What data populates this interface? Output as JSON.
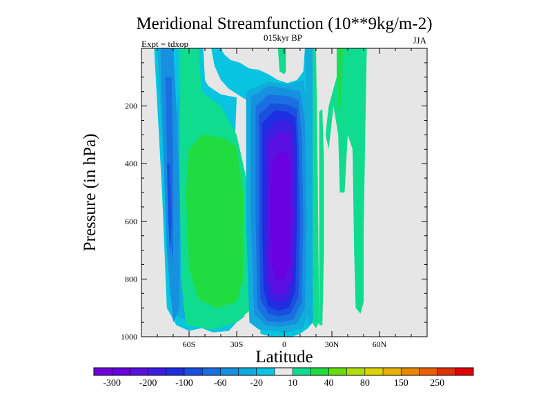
{
  "chart_data": {
    "type": "heatmap",
    "title": "Meridional Streamfunction (10**9kg/m-2)",
    "subtitle_center": "015kyr BP",
    "subtitle_left": "Expt = tdxop",
    "subtitle_right": "JJA",
    "xlabel": "Latitude",
    "ylabel": "Pressure (in hPa)",
    "xlim": [
      -90,
      90
    ],
    "ylim": [
      1000,
      0
    ],
    "x_ticks": [
      {
        "value": -60,
        "label": "60S"
      },
      {
        "value": -30,
        "label": "30S"
      },
      {
        "value": 0,
        "label": "0"
      },
      {
        "value": 30,
        "label": "30N"
      },
      {
        "value": 60,
        "label": "60N"
      }
    ],
    "y_ticks": [
      {
        "value": 200,
        "label": "200"
      },
      {
        "value": 400,
        "label": "400"
      },
      {
        "value": 600,
        "label": "600"
      },
      {
        "value": 800,
        "label": "800"
      },
      {
        "value": 1000,
        "label": "1000"
      }
    ],
    "background_color": "#e6e6e6",
    "colorbar": {
      "colors": [
        "#7000dc",
        "#6800e0",
        "#5a10e0",
        "#3c1ee0",
        "#1e2ee0",
        "#1a50e0",
        "#1a70e0",
        "#1890e0",
        "#10acdc",
        "#08c4e0",
        "#e8e8e8",
        "#10dc90",
        "#20dc40",
        "#68dc10",
        "#b0dc10",
        "#dcd400",
        "#e8b000",
        "#e88800",
        "#e86000",
        "#e03000",
        "#e00000"
      ],
      "labels": [
        "-300",
        "-200",
        "-100",
        "-60",
        "-20",
        "10",
        "40",
        "80",
        "150",
        "250"
      ]
    },
    "contour_regions": [
      {
        "name": "sh-outer-cyan",
        "color": "#08c4e0",
        "polygon": [
          [
            -88,
            0
          ],
          [
            -82,
            0
          ],
          [
            -80,
            200
          ],
          [
            -77,
            500
          ],
          [
            -74,
            900
          ],
          [
            -68,
            960
          ],
          [
            -60,
            980
          ],
          [
            -52,
            970
          ],
          [
            -45,
            985
          ],
          [
            -35,
            980
          ],
          [
            -30,
            950
          ],
          [
            -25,
            930
          ],
          [
            -30,
            900
          ],
          [
            -35,
            870
          ],
          [
            -30,
            170
          ],
          [
            -40,
            160
          ],
          [
            -48,
            130
          ],
          [
            -50,
            110
          ],
          [
            -51,
            0
          ],
          [
            -46,
            0
          ],
          [
            -44,
            60
          ],
          [
            -40,
            110
          ],
          [
            -35,
            140
          ],
          [
            -28,
            165
          ],
          [
            -22,
            185
          ],
          [
            -20,
            200
          ],
          [
            -15,
            990
          ],
          [
            -8,
            1000
          ],
          [
            -2,
            1000
          ],
          [
            5,
            1000
          ],
          [
            10,
            990
          ],
          [
            15,
            970
          ],
          [
            18,
            950
          ],
          [
            17,
            0
          ],
          [
            13,
            0
          ],
          [
            12,
            80
          ],
          [
            8,
            110
          ],
          [
            2,
            120
          ],
          [
            -4,
            110
          ],
          [
            -10,
            90
          ],
          [
            -16,
            75
          ],
          [
            -22,
            70
          ],
          [
            -28,
            50
          ],
          [
            -34,
            40
          ],
          [
            -38,
            20
          ],
          [
            -40,
            0
          ],
          [
            -88,
            0
          ],
          [
            -88,
            1000
          ]
        ]
      },
      {
        "name": "sh-cyan-ring",
        "color": "#10acdc",
        "polygon": [
          [
            -80,
            0
          ],
          [
            -77,
            0
          ],
          [
            -76,
            250
          ],
          [
            -74,
            500
          ],
          [
            -71,
            700
          ],
          [
            -69,
            850
          ],
          [
            -68,
            930
          ],
          [
            -62,
            940
          ],
          [
            -56,
            950
          ],
          [
            -50,
            960
          ],
          [
            -42,
            950
          ],
          [
            -38,
            900
          ],
          [
            -36,
            500
          ],
          [
            -38,
            320
          ],
          [
            -43,
            300
          ],
          [
            -53,
            160
          ],
          [
            -58,
            0
          ],
          [
            -64,
            0
          ],
          [
            -68,
            250
          ],
          [
            -72,
            900
          ],
          [
            -75,
            500
          ],
          [
            -78,
            200
          ]
        ]
      },
      {
        "name": "sh-blue-1",
        "color": "#1890e0",
        "polygon": [
          [
            -78,
            0
          ],
          [
            -70,
            0
          ],
          [
            -68,
            200
          ],
          [
            -66,
            500
          ],
          [
            -66,
            900
          ],
          [
            -70,
            950
          ],
          [
            -74,
            700
          ],
          [
            -76,
            400
          ]
        ]
      },
      {
        "name": "sh-blue-2",
        "color": "#1a70e0",
        "polygon": [
          [
            -75,
            100
          ],
          [
            -71,
            100
          ],
          [
            -70,
            400
          ],
          [
            -70,
            750
          ],
          [
            -73,
            600
          ],
          [
            -74,
            350
          ]
        ]
      },
      {
        "name": "sh-blue-3",
        "color": "#1a50e0",
        "polygon": [
          [
            -74,
            400
          ],
          [
            -72,
            400
          ],
          [
            -71,
            600
          ],
          [
            -72,
            720
          ],
          [
            -73,
            600
          ]
        ]
      },
      {
        "name": "sh-green-ferrel",
        "color": "#10dc90",
        "polygon": [
          [
            -66,
            0
          ],
          [
            -54,
            0
          ],
          [
            -52,
            150
          ],
          [
            -40,
            200
          ],
          [
            -30,
            300
          ],
          [
            -22,
            500
          ],
          [
            -20,
            900
          ],
          [
            -30,
            950
          ],
          [
            -45,
            975
          ],
          [
            -62,
            960
          ],
          [
            -65,
            800
          ],
          [
            -66,
            400
          ]
        ]
      },
      {
        "name": "sh-lime-core",
        "color": "#20dc40",
        "polygon": [
          [
            -60,
            350
          ],
          [
            -52,
            300
          ],
          [
            -38,
            310
          ],
          [
            -30,
            340
          ],
          [
            -26,
            500
          ],
          [
            -26,
            800
          ],
          [
            -30,
            880
          ],
          [
            -42,
            900
          ],
          [
            -54,
            870
          ],
          [
            -60,
            760
          ],
          [
            -62,
            500
          ]
        ]
      },
      {
        "name": "hadley-ring-1",
        "color": "#10acdc",
        "polygon": [
          [
            -24,
            150
          ],
          [
            -10,
            115
          ],
          [
            2,
            125
          ],
          [
            12,
            110
          ],
          [
            15,
            200
          ],
          [
            16,
            600
          ],
          [
            16,
            900
          ],
          [
            12,
            970
          ],
          [
            2,
            985
          ],
          [
            -8,
            980
          ],
          [
            -16,
            975
          ],
          [
            -22,
            950
          ],
          [
            -24,
            600
          ]
        ]
      },
      {
        "name": "hadley-ring-2",
        "color": "#1890e0",
        "polygon": [
          [
            -21,
            170
          ],
          [
            -10,
            130
          ],
          [
            2,
            140
          ],
          [
            10,
            150
          ],
          [
            13,
            250
          ],
          [
            14,
            600
          ],
          [
            13,
            900
          ],
          [
            8,
            955
          ],
          [
            -2,
            965
          ],
          [
            -12,
            960
          ],
          [
            -19,
            920
          ],
          [
            -21,
            600
          ]
        ]
      },
      {
        "name": "hadley-ring-3",
        "color": "#1a70e0",
        "polygon": [
          [
            -18,
            200
          ],
          [
            -10,
            160
          ],
          [
            2,
            165
          ],
          [
            9,
            180
          ],
          [
            11,
            300
          ],
          [
            12,
            600
          ],
          [
            11,
            880
          ],
          [
            6,
            940
          ],
          [
            -2,
            950
          ],
          [
            -11,
            945
          ],
          [
            -17,
            900
          ],
          [
            -18,
            600
          ]
        ]
      },
      {
        "name": "hadley-ring-4",
        "color": "#1a50e0",
        "polygon": [
          [
            -16,
            230
          ],
          [
            -8,
            190
          ],
          [
            2,
            195
          ],
          [
            8,
            210
          ],
          [
            9,
            330
          ],
          [
            10,
            600
          ],
          [
            9,
            860
          ],
          [
            4,
            920
          ],
          [
            -3,
            930
          ],
          [
            -10,
            920
          ],
          [
            -15,
            870
          ],
          [
            -16,
            600
          ]
        ]
      },
      {
        "name": "hadley-ring-5",
        "color": "#1e2ee0",
        "polygon": [
          [
            -14,
            260
          ],
          [
            -6,
            215
          ],
          [
            2,
            220
          ],
          [
            7,
            240
          ],
          [
            8,
            360
          ],
          [
            8,
            600
          ],
          [
            7,
            840
          ],
          [
            3,
            900
          ],
          [
            -4,
            910
          ],
          [
            -10,
            895
          ],
          [
            -13,
            840
          ],
          [
            -14,
            600
          ]
        ]
      },
      {
        "name": "hadley-ring-6",
        "color": "#3c1ee0",
        "polygon": [
          [
            -12,
            300
          ],
          [
            -5,
            250
          ],
          [
            2,
            250
          ],
          [
            6,
            275
          ],
          [
            6.5,
            400
          ],
          [
            7,
            600
          ],
          [
            6,
            820
          ],
          [
            2,
            875
          ],
          [
            -4,
            885
          ],
          [
            -9,
            870
          ],
          [
            -11.5,
            820
          ],
          [
            -12,
            600
          ]
        ]
      },
      {
        "name": "hadley-ring-7",
        "color": "#5a10e0",
        "polygon": [
          [
            -10,
            330
          ],
          [
            -4,
            290
          ],
          [
            2,
            290
          ],
          [
            5,
            310
          ],
          [
            5.5,
            440
          ],
          [
            5.5,
            600
          ],
          [
            5,
            790
          ],
          [
            1,
            850
          ],
          [
            -4,
            860
          ],
          [
            -8,
            840
          ],
          [
            -10,
            790
          ],
          [
            -10.5,
            600
          ]
        ]
      },
      {
        "name": "hadley-core",
        "color": "#6800e0",
        "polygon": [
          [
            -8,
            400
          ],
          [
            -3,
            360
          ],
          [
            2,
            360
          ],
          [
            4,
            420
          ],
          [
            4,
            600
          ],
          [
            3.5,
            750
          ],
          [
            0,
            800
          ],
          [
            -5,
            805
          ],
          [
            -7.5,
            760
          ],
          [
            -8.5,
            600
          ]
        ]
      },
      {
        "name": "eq-green-sliver",
        "color": "#10dc90",
        "polygon": [
          [
            -4,
            0
          ],
          [
            1,
            0
          ],
          [
            1,
            80
          ],
          [
            0,
            90
          ],
          [
            -3,
            80
          ]
        ]
      },
      {
        "name": "nh-cyan-edge",
        "color": "#10acdc",
        "polygon": [
          [
            13,
            0
          ],
          [
            18,
            0
          ],
          [
            18,
            950
          ],
          [
            15,
            960
          ],
          [
            15,
            600
          ],
          [
            14,
            200
          ]
        ]
      },
      {
        "name": "nh-green-strip",
        "color": "#10dc90",
        "polygon": [
          [
            18,
            0
          ],
          [
            20,
            0
          ],
          [
            21,
            400
          ],
          [
            22,
            950
          ],
          [
            20,
            970
          ],
          [
            18,
            955
          ]
        ]
      },
      {
        "name": "nh-green-finger-1",
        "color": "#10dc90",
        "polygon": [
          [
            22,
            220
          ],
          [
            24,
            210
          ],
          [
            25,
            400
          ],
          [
            25,
            700
          ],
          [
            24,
            960
          ],
          [
            22,
            960
          ],
          [
            22,
            600
          ]
        ]
      },
      {
        "name": "nh-green-upper",
        "color": "#10dc90",
        "polygon": [
          [
            33,
            0
          ],
          [
            52,
            0
          ],
          [
            51,
            300
          ],
          [
            50,
            650
          ],
          [
            50,
            880
          ],
          [
            48,
            920
          ],
          [
            45,
            900
          ],
          [
            44,
            700
          ],
          [
            43,
            350
          ],
          [
            40,
            300
          ],
          [
            38,
            500
          ],
          [
            35,
            500
          ],
          [
            34,
            300
          ],
          [
            31,
            200
          ],
          [
            28,
            350
          ],
          [
            26,
            300
          ],
          [
            28,
            200
          ],
          [
            33,
            100
          ]
        ]
      },
      {
        "name": "nh-lime-sliver",
        "color": "#20dc40",
        "polygon": [
          [
            34,
            0
          ],
          [
            37,
            0
          ],
          [
            36,
            100
          ],
          [
            35,
            250
          ],
          [
            34,
            200
          ]
        ]
      }
    ]
  }
}
